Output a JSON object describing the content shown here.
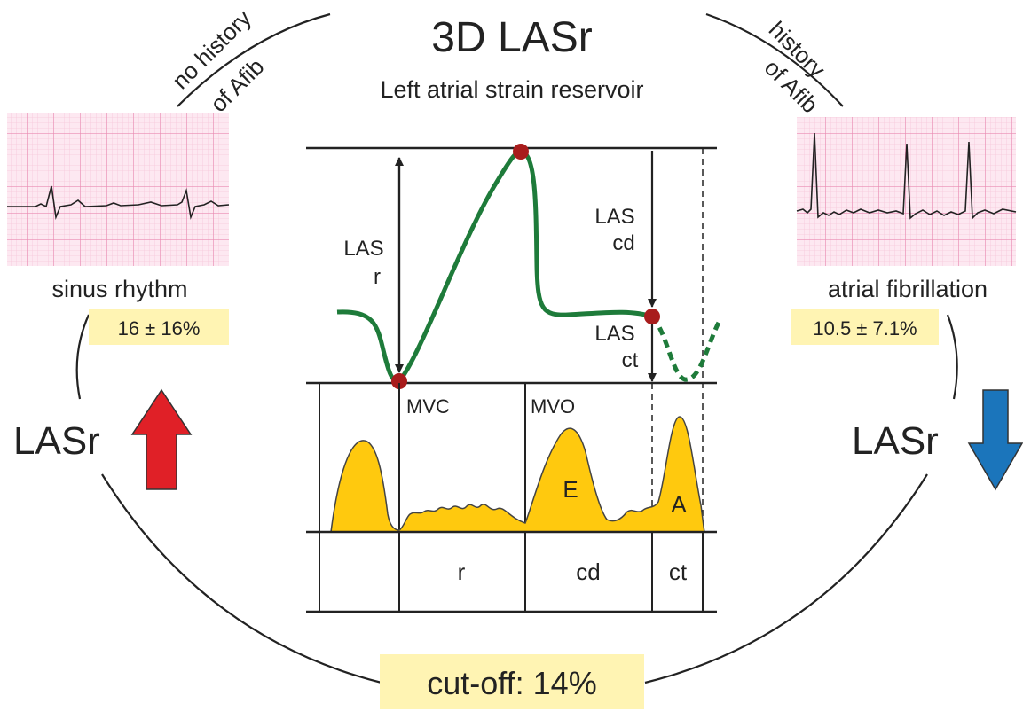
{
  "title": "3D LASr",
  "subtitle": "Left atrial strain reservoir",
  "left": {
    "arc_label_line1": "no history",
    "arc_label_line2": "of Afib",
    "rhythm_label": "sinus rhythm",
    "value": "16 ± 16%",
    "lasr_label": "LASr",
    "arrow_direction": "up",
    "arrow_color": "#e02027"
  },
  "right": {
    "arc_label_line1": "history",
    "arc_label_line2": "of Afib",
    "rhythm_label": "atrial fibrillation",
    "value": "10.5 ± 7.1%",
    "lasr_label": "LASr",
    "arrow_direction": "down",
    "arrow_color": "#1b75bb"
  },
  "cutoff": "cut-off: 14%",
  "strain": {
    "las_r_line1": "LAS",
    "las_r_line2": "r",
    "las_cd_line1": "LAS",
    "las_cd_line2": "cd",
    "las_ct_line1": "LAS",
    "las_ct_line2": "ct"
  },
  "doppler": {
    "mvc": "MVC",
    "mvo": "MVO",
    "e_wave": "E",
    "a_wave": "A"
  },
  "phases": [
    "r",
    "cd",
    "ct"
  ],
  "colors": {
    "strain_curve": "#1e7b3a",
    "marker": "#a81c1c",
    "doppler_fill": "#ffc90e",
    "value_box": "#fff4b3",
    "ecg_grid": "#f2a9c6",
    "ecg_background": "#fde8f1"
  }
}
